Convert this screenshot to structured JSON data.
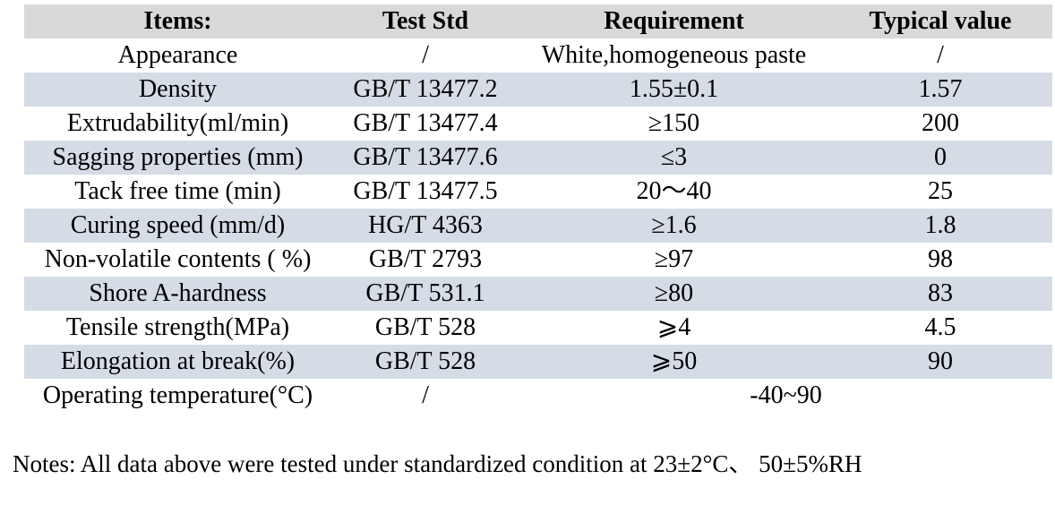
{
  "table": {
    "colors": {
      "header_bg": "#d9d9d9",
      "stripe_bg": "#d5dce6"
    },
    "headers": {
      "items": "Items:",
      "test_std": "Test Std",
      "requirement": "Requirement",
      "typical_value": "Typical value"
    },
    "rows": [
      {
        "item": "Appearance",
        "test_std": "/",
        "requirement": "White,homogeneous paste",
        "typical_value": "/"
      },
      {
        "item": "Density",
        "test_std": "GB/T 13477.2",
        "requirement": "1.55±0.1",
        "typical_value": "1.57"
      },
      {
        "item": "Extrudability(ml/min)",
        "test_std": "GB/T 13477.4",
        "requirement": "≥150",
        "typical_value": "200"
      },
      {
        "item": "Sagging properties (mm)",
        "test_std": "GB/T 13477.6",
        "requirement": "≤3",
        "typical_value": "0"
      },
      {
        "item": "Tack free time (min)",
        "test_std": "GB/T 13477.5",
        "requirement": "20～40",
        "typical_value": "25"
      },
      {
        "item": "Curing speed (mm/d)",
        "test_std": "HG/T 4363",
        "requirement": "≥1.6",
        "typical_value": "1.8"
      },
      {
        "item": "Non-volatile contents ( %)",
        "test_std": "GB/T 2793",
        "requirement": "≥97",
        "typical_value": "98"
      },
      {
        "item": "Shore A-hardness",
        "test_std": "GB/T 531.1",
        "requirement": "≥80",
        "typical_value": "83"
      },
      {
        "item": "Tensile strength(MPa)",
        "test_std": "GB/T 528",
        "requirement": "⩾4",
        "typical_value": "4.5"
      },
      {
        "item": "Elongation at break(%)",
        "test_std": "GB/T 528",
        "requirement": "⩾50",
        "typical_value": "90"
      },
      {
        "item": "Operating temperature(°C)",
        "test_std": "/",
        "requirement": "-40~90"
      }
    ]
  },
  "notes": "Notes: All data above were tested under standardized condition at 23±2°C、 50±5%RH"
}
